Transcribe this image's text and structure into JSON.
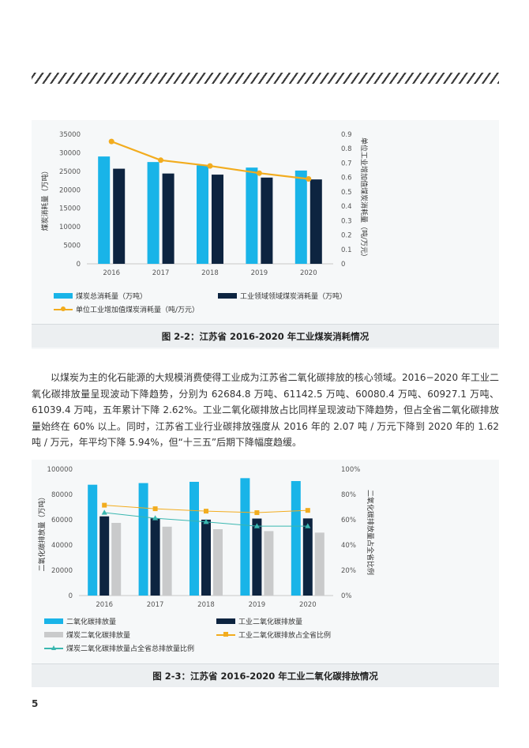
{
  "colors": {
    "cyan": "#19b4e8",
    "navy": "#0d2440",
    "gray": "#c9cacb",
    "orange": "#f2ac1e",
    "teal": "#3ab7b0",
    "axis_text": "#555555"
  },
  "chart_data": [
    {
      "type": "bar",
      "categories": [
        "2016",
        "2017",
        "2018",
        "2019",
        "2020"
      ],
      "ylabel": "煤炭消耗量（万吨）",
      "y2label": "单位工业增加值煤炭消耗量（吨/万元）",
      "ylim": [
        0,
        35000
      ],
      "y_ticks": [
        "0",
        "5000",
        "10000",
        "15000",
        "20000",
        "25000",
        "30000",
        "35000"
      ],
      "y2lim": [
        0,
        0.9
      ],
      "y2_ticks": [
        "0",
        "0.1",
        "0.2",
        "0.3",
        "0.4",
        "0.5",
        "0.6",
        "0.7",
        "0.8",
        "0.9"
      ],
      "grid": false,
      "legend_position": "bottom",
      "series": [
        {
          "name": "煤炭总消耗量（万吨）",
          "kind": "bar",
          "axis": "left",
          "color": "#19b4e8",
          "values": [
            29000,
            27500,
            26600,
            26000,
            25200
          ]
        },
        {
          "name": "工业领域领域煤炭消耗量（万吨）",
          "kind": "bar",
          "axis": "left",
          "color": "#0d2440",
          "values": [
            25700,
            24400,
            24100,
            23300,
            22800
          ]
        },
        {
          "name": "单位工业增加值煤炭消耗量（吨/万元）",
          "kind": "line",
          "axis": "right",
          "color": "#f2ac1e",
          "marker": "circle",
          "values": [
            0.85,
            0.72,
            0.68,
            0.63,
            0.59
          ]
        }
      ]
    },
    {
      "type": "bar",
      "categories": [
        "2016",
        "2017",
        "2018",
        "2019",
        "2020"
      ],
      "ylabel": "二氧化碳排放量（万吨）",
      "y2label": "二氧化碳排放量占全省比例",
      "ylim": [
        0,
        100000
      ],
      "y_ticks": [
        "0",
        "20000",
        "40000",
        "60000",
        "80000",
        "100000"
      ],
      "y2lim": [
        0,
        100
      ],
      "y2_ticks": [
        "0%",
        "20%",
        "40%",
        "60%",
        "80%",
        "100%"
      ],
      "grid": false,
      "legend_position": "bottom",
      "series": [
        {
          "name": "二氧化碳排放量",
          "kind": "bar",
          "axis": "left",
          "color": "#19b4e8",
          "values": [
            87700,
            89000,
            90000,
            92900,
            90600
          ]
        },
        {
          "name": "工业二氧化碳排放量",
          "kind": "bar",
          "axis": "left",
          "color": "#0d2440",
          "values": [
            62684.8,
            61142.5,
            60080.4,
            60927.1,
            61039.4
          ]
        },
        {
          "name": "煤炭二氧化碳排放量",
          "kind": "bar",
          "axis": "left",
          "color": "#c9cacb",
          "values": [
            57500,
            54500,
            52500,
            51000,
            49800
          ]
        },
        {
          "name": "工业二氧化碳排放占全省比例",
          "kind": "line",
          "axis": "right",
          "color": "#f2ac1e",
          "marker": "square",
          "values": [
            71.5,
            68.7,
            66.8,
            65.6,
            67.4
          ]
        },
        {
          "name": "煤炭二氧化碳排放量占全省总排放量比例",
          "kind": "line",
          "axis": "right",
          "color": "#3ab7b0",
          "marker": "triangle",
          "values": [
            65.6,
            61.2,
            58.3,
            54.9,
            54.9
          ]
        }
      ]
    }
  ],
  "figures": {
    "fig1_caption": "图 2-2：江苏省 2016-2020 年工业煤炭消耗情况",
    "fig2_caption": "图 2-3：江苏省 2016-2020 年工业二氧化碳排放情况"
  },
  "body": {
    "paragraph": "以煤炭为主的化石能源的大规模消费使得工业成为江苏省二氧化碳排放的核心领域。2016−2020 年工业二氧化碳排放量呈现波动下降趋势，分别为 62684.8 万吨、61142.5 万吨、60080.4 万吨、60927.1 万吨、61039.4 万吨，五年累计下降 2.62%。工业二氧化碳排放占比同样呈现波动下降趋势，但占全省二氧化碳排放量始终在 60% 以上。同时，江苏省工业行业碳排放强度从 2016 年的 2.07 吨 / 万元下降到 2020 年的 1.62 吨 / 万元，年平均下降 5.94%，但“十三五”后期下降幅度趋缓。"
  },
  "page": {
    "number": "5"
  }
}
